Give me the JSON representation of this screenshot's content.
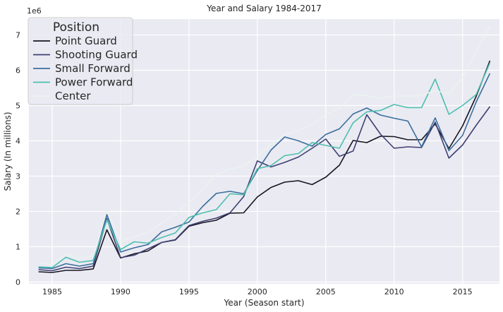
{
  "chart_data": {
    "type": "line",
    "title": "Year and Salary 1984-2017",
    "xlabel": "Year (Season start)",
    "ylabel": "Salary (In millions)",
    "y_offset_label": "1e6",
    "xlim": [
      1983.3,
      2017.7
    ],
    "ylim": [
      -50000,
      7450000
    ],
    "x_ticks": [
      1985,
      1990,
      1995,
      2000,
      2005,
      2010,
      2015
    ],
    "y_ticks": [
      0,
      1000000,
      2000000,
      3000000,
      4000000,
      5000000,
      6000000,
      7000000
    ],
    "y_tick_labels": [
      "0",
      "1",
      "2",
      "3",
      "4",
      "5",
      "6",
      "7"
    ],
    "grid": true,
    "legend_title": "Position",
    "legend_position": "top-left",
    "x": [
      1984,
      1985,
      1986,
      1987,
      1988,
      1989,
      1990,
      1991,
      1992,
      1993,
      1994,
      1995,
      1996,
      1997,
      1998,
      1999,
      2000,
      2001,
      2002,
      2003,
      2004,
      2005,
      2006,
      2007,
      2008,
      2009,
      2010,
      2011,
      2012,
      2013,
      2014,
      2015,
      2016,
      2017
    ],
    "series": [
      {
        "name": "Point Guard",
        "color": "#17151f",
        "values": [
          290000,
          270000,
          330000,
          330000,
          370000,
          1480000,
          680000,
          800000,
          880000,
          1120000,
          1190000,
          1580000,
          1680000,
          1750000,
          1950000,
          1960000,
          2410000,
          2680000,
          2830000,
          2870000,
          2760000,
          2970000,
          3310000,
          4010000,
          3950000,
          4130000,
          4120000,
          4030000,
          4030000,
          4480000,
          3780000,
          4420000,
          5260000,
          6270000
        ]
      },
      {
        "name": "Shooting Guard",
        "color": "#3f3f73",
        "values": [
          350000,
          320000,
          420000,
          380000,
          450000,
          1800000,
          690000,
          760000,
          940000,
          1120000,
          1200000,
          1600000,
          1720000,
          1810000,
          1960000,
          2420000,
          3430000,
          3260000,
          3390000,
          3540000,
          3790000,
          4050000,
          3560000,
          3710000,
          4740000,
          4190000,
          3790000,
          3830000,
          3810000,
          4530000,
          3510000,
          3880000,
          4440000,
          4970000
        ]
      },
      {
        "name": "Small Forward",
        "color": "#3a6e9d",
        "values": [
          400000,
          380000,
          520000,
          450000,
          520000,
          1910000,
          850000,
          970000,
          1060000,
          1420000,
          1550000,
          1700000,
          2140000,
          2510000,
          2570000,
          2500000,
          3160000,
          3740000,
          4110000,
          4000000,
          3850000,
          4180000,
          4340000,
          4760000,
          4930000,
          4730000,
          4640000,
          4560000,
          3830000,
          4650000,
          3720000,
          4150000,
          5100000,
          5910000
        ]
      },
      {
        "name": "Power Forward",
        "color": "#4cbfae",
        "values": [
          430000,
          410000,
          700000,
          560000,
          610000,
          1760000,
          920000,
          1140000,
          1100000,
          1260000,
          1390000,
          1830000,
          1960000,
          2050000,
          2500000,
          2470000,
          3210000,
          3300000,
          3580000,
          3640000,
          3950000,
          3870000,
          3790000,
          4510000,
          4820000,
          4860000,
          5030000,
          4940000,
          4940000,
          5750000,
          4750000,
          5000000,
          5310000,
          6210000
        ]
      },
      {
        "name": "Center",
        "color": "#eaf3f0",
        "values": [
          560000,
          490000,
          800000,
          660000,
          740000,
          2030000,
          1160000,
          1280000,
          1410000,
          1660000,
          1930000,
          2260000,
          2630000,
          3060000,
          3190000,
          3290000,
          3560000,
          3910000,
          4170000,
          4290000,
          4450000,
          4760000,
          4920000,
          5310000,
          5280000,
          5210000,
          5280000,
          5260000,
          5290000,
          5430000,
          5320000,
          5800000,
          6520000,
          7250000
        ]
      }
    ]
  }
}
